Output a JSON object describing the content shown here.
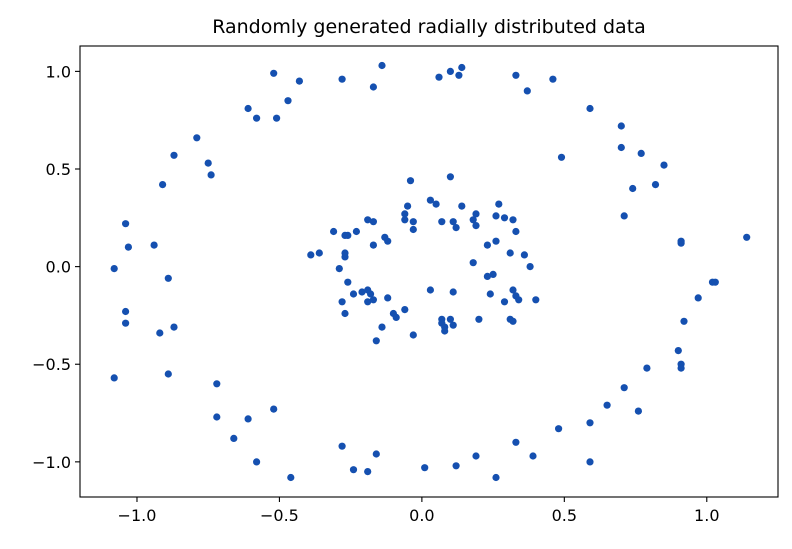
{
  "chart_data": {
    "type": "scatter",
    "title": "Randomly generated radially distributed data",
    "xlabel": "",
    "ylabel": "",
    "xlim": [
      -1.2,
      1.25
    ],
    "ylim": [
      -1.18,
      1.13
    ],
    "grid": false,
    "marker_color": "#1550b0",
    "x_ticks": [
      {
        "value": -1.0,
        "label": "−1.0"
      },
      {
        "value": -0.5,
        "label": "−0.5"
      },
      {
        "value": 0.0,
        "label": "0.0"
      },
      {
        "value": 0.5,
        "label": "0.5"
      },
      {
        "value": 1.0,
        "label": "1.0"
      }
    ],
    "y_ticks": [
      {
        "value": -1.0,
        "label": "−1.0"
      },
      {
        "value": -0.5,
        "label": "−0.5"
      },
      {
        "value": 0.0,
        "label": "0.0"
      },
      {
        "value": 0.5,
        "label": "0.5"
      },
      {
        "value": 1.0,
        "label": "1.0"
      }
    ],
    "points": [
      [
        -0.52,
        0.99
      ],
      [
        -0.43,
        0.95
      ],
      [
        -0.28,
        0.96
      ],
      [
        -0.14,
        1.03
      ],
      [
        -0.17,
        0.92
      ],
      [
        0.06,
        0.97
      ],
      [
        0.1,
        1.0
      ],
      [
        0.13,
        0.98
      ],
      [
        0.14,
        1.02
      ],
      [
        0.33,
        0.98
      ],
      [
        0.37,
        0.9
      ],
      [
        0.46,
        0.96
      ],
      [
        -0.61,
        0.81
      ],
      [
        -0.58,
        0.76
      ],
      [
        -0.51,
        0.76
      ],
      [
        -0.47,
        0.85
      ],
      [
        0.59,
        0.81
      ],
      [
        0.7,
        0.72
      ],
      [
        0.7,
        0.61
      ],
      [
        0.77,
        0.58
      ],
      [
        0.85,
        0.52
      ],
      [
        0.49,
        0.56
      ],
      [
        0.74,
        0.4
      ],
      [
        0.82,
        0.42
      ],
      [
        0.71,
        0.26
      ],
      [
        -0.79,
        0.66
      ],
      [
        -0.87,
        0.57
      ],
      [
        -0.75,
        0.53
      ],
      [
        -0.74,
        0.47
      ],
      [
        -0.91,
        0.42
      ],
      [
        -1.04,
        0.22
      ],
      [
        -1.03,
        0.1
      ],
      [
        -0.94,
        0.11
      ],
      [
        -1.08,
        -0.01
      ],
      [
        -0.89,
        -0.06
      ],
      [
        -1.04,
        -0.23
      ],
      [
        -1.04,
        -0.29
      ],
      [
        -0.87,
        -0.31
      ],
      [
        -0.92,
        -0.34
      ],
      [
        -1.08,
        -0.57
      ],
      [
        -0.89,
        -0.55
      ],
      [
        -0.72,
        -0.6
      ],
      [
        -0.72,
        -0.77
      ],
      [
        -0.61,
        -0.78
      ],
      [
        -0.52,
        -0.73
      ],
      [
        -0.66,
        -0.88
      ],
      [
        -0.58,
        -1.0
      ],
      [
        -0.46,
        -1.08
      ],
      [
        -0.28,
        -0.92
      ],
      [
        -0.24,
        -1.04
      ],
      [
        -0.19,
        -1.05
      ],
      [
        -0.16,
        -0.96
      ],
      [
        0.01,
        -1.03
      ],
      [
        0.12,
        -1.02
      ],
      [
        0.19,
        -0.97
      ],
      [
        0.26,
        -1.08
      ],
      [
        0.33,
        -0.9
      ],
      [
        0.39,
        -0.97
      ],
      [
        0.48,
        -0.83
      ],
      [
        0.59,
        -0.8
      ],
      [
        0.59,
        -1.0
      ],
      [
        0.65,
        -0.71
      ],
      [
        0.71,
        -0.62
      ],
      [
        0.76,
        -0.74
      ],
      [
        0.79,
        -0.52
      ],
      [
        0.9,
        -0.43
      ],
      [
        0.91,
        -0.5
      ],
      [
        0.91,
        -0.52
      ],
      [
        0.92,
        -0.28
      ],
      [
        0.97,
        -0.16
      ],
      [
        1.02,
        -0.08
      ],
      [
        1.03,
        -0.08
      ],
      [
        1.14,
        0.15
      ],
      [
        0.91,
        0.12
      ],
      [
        0.91,
        0.13
      ],
      [
        -0.39,
        0.06
      ],
      [
        -0.36,
        0.07
      ],
      [
        -0.31,
        0.18
      ],
      [
        -0.27,
        0.16
      ],
      [
        -0.26,
        0.16
      ],
      [
        -0.23,
        0.18
      ],
      [
        -0.27,
        0.05
      ],
      [
        -0.27,
        0.07
      ],
      [
        -0.19,
        0.24
      ],
      [
        -0.17,
        0.23
      ],
      [
        -0.17,
        0.11
      ],
      [
        -0.13,
        0.15
      ],
      [
        -0.12,
        0.13
      ],
      [
        -0.06,
        0.27
      ],
      [
        -0.05,
        0.31
      ],
      [
        -0.06,
        0.24
      ],
      [
        -0.03,
        0.19
      ],
      [
        -0.03,
        0.23
      ],
      [
        -0.04,
        0.44
      ],
      [
        0.03,
        0.34
      ],
      [
        0.05,
        0.32
      ],
      [
        0.07,
        0.23
      ],
      [
        0.1,
        0.46
      ],
      [
        0.11,
        0.23
      ],
      [
        0.12,
        0.2
      ],
      [
        0.14,
        0.31
      ],
      [
        0.18,
        0.24
      ],
      [
        0.19,
        0.27
      ],
      [
        0.19,
        0.21
      ],
      [
        0.23,
        0.11
      ],
      [
        0.26,
        0.26
      ],
      [
        0.27,
        0.32
      ],
      [
        0.29,
        0.25
      ],
      [
        0.32,
        0.24
      ],
      [
        0.33,
        0.18
      ],
      [
        0.26,
        0.13
      ],
      [
        0.31,
        0.07
      ],
      [
        0.36,
        0.06
      ],
      [
        0.38,
        0.0
      ],
      [
        0.18,
        0.02
      ],
      [
        -0.29,
        -0.01
      ],
      [
        -0.26,
        -0.08
      ],
      [
        -0.24,
        -0.14
      ],
      [
        -0.21,
        -0.13
      ],
      [
        -0.19,
        -0.12
      ],
      [
        -0.19,
        -0.18
      ],
      [
        -0.18,
        -0.14
      ],
      [
        -0.17,
        -0.17
      ],
      [
        -0.28,
        -0.18
      ],
      [
        -0.27,
        -0.24
      ],
      [
        -0.16,
        -0.38
      ],
      [
        -0.14,
        -0.31
      ],
      [
        -0.12,
        -0.16
      ],
      [
        -0.1,
        -0.24
      ],
      [
        -0.09,
        -0.26
      ],
      [
        -0.06,
        -0.22
      ],
      [
        -0.03,
        -0.35
      ],
      [
        0.03,
        -0.12
      ],
      [
        0.07,
        -0.27
      ],
      [
        0.07,
        -0.29
      ],
      [
        0.08,
        -0.31
      ],
      [
        0.08,
        -0.33
      ],
      [
        0.1,
        -0.27
      ],
      [
        0.11,
        -0.3
      ],
      [
        0.11,
        -0.13
      ],
      [
        0.2,
        -0.27
      ],
      [
        0.23,
        -0.05
      ],
      [
        0.25,
        -0.04
      ],
      [
        0.24,
        -0.14
      ],
      [
        0.29,
        -0.18
      ],
      [
        0.32,
        -0.12
      ],
      [
        0.33,
        -0.15
      ],
      [
        0.34,
        -0.17
      ],
      [
        0.31,
        -0.27
      ],
      [
        0.32,
        -0.28
      ],
      [
        0.4,
        -0.17
      ]
    ]
  }
}
